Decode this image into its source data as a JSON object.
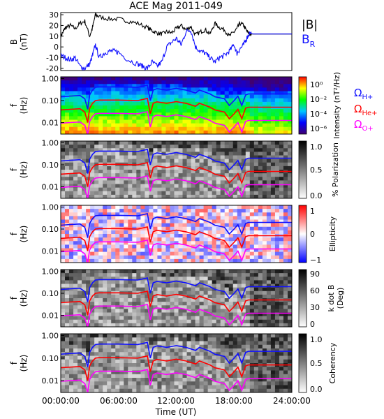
{
  "title": "ACE Mag 2011-049",
  "colors": {
    "black": "#000000",
    "proton": "#1010ff",
    "helium": "#ff0000",
    "oxygen": "#ff00ff"
  },
  "time_axis": {
    "xlabel": "Time (UT)",
    "ticks": [
      "00:00:00",
      "06:00:00",
      "12:00:00",
      "18:00:00",
      "24:00:00"
    ],
    "range_hours": [
      0,
      24
    ]
  },
  "legend_top": {
    "babs": "|B|",
    "br": "B",
    "br_sub": "R"
  },
  "gyro_legend": {
    "omega": "Ω",
    "h_sub": "H+",
    "he_sub": "He+",
    "o_sub": "O+"
  },
  "chart_data": [
    {
      "type": "line",
      "panel": "magnetic field",
      "ylabel_main": "B",
      "ylabel_unit": "(nT)",
      "ylim": [
        -22,
        32
      ],
      "yticks": [
        "30",
        "20",
        "10",
        "0",
        "-10",
        "-20"
      ],
      "ytick_values": [
        30,
        20,
        10,
        0,
        -10,
        -20
      ],
      "series": [
        {
          "name": "|B|",
          "color": "#000000",
          "x": [
            0,
            0.3,
            0.5,
            1,
            1.5,
            2,
            2.5,
            3,
            3.3,
            3.6,
            4,
            5,
            6,
            7,
            8,
            9,
            9.5,
            10,
            10.5,
            11,
            11.5,
            12,
            12.5,
            13,
            13.5,
            14,
            14.5,
            15,
            15.5,
            16,
            16.5,
            17,
            17.5,
            18,
            18.3,
            18.6,
            19,
            19.3,
            19.6,
            20,
            21,
            22,
            23,
            24
          ],
          "y": [
            10,
            15,
            18,
            20,
            17,
            22,
            24,
            10,
            18,
            30,
            28,
            26,
            26,
            24,
            22,
            18,
            15,
            13,
            12,
            14,
            13,
            17,
            20,
            16,
            19,
            11,
            14,
            16,
            12,
            22,
            18,
            16,
            10,
            14,
            17,
            22,
            20,
            15,
            12,
            12,
            12,
            12,
            12,
            12
          ]
        },
        {
          "name": "B_R",
          "color": "#1010ff",
          "x": [
            0,
            0.5,
            1,
            1.5,
            2,
            2.5,
            3,
            3.3,
            3.6,
            4,
            4.5,
            5,
            5.5,
            6,
            7,
            8,
            8.5,
            9,
            9.5,
            10,
            10.5,
            11,
            11.5,
            12,
            12.5,
            13,
            13.5,
            14,
            14.5,
            15,
            15.5,
            16,
            16.5,
            17,
            17.5,
            18,
            18.3,
            18.6,
            19,
            19.3,
            19.6,
            20,
            21,
            22,
            23,
            24
          ],
          "y": [
            -8,
            -10,
            -12,
            -10,
            -18,
            -20,
            -16,
            -8,
            2,
            -10,
            -6,
            -4,
            -4,
            -5,
            -12,
            -16,
            -18,
            -20,
            -14,
            -18,
            -14,
            0,
            4,
            8,
            2,
            14,
            16,
            0,
            -4,
            -6,
            -10,
            -14,
            -10,
            -8,
            -4,
            2,
            -6,
            -2,
            2,
            8,
            13,
            12,
            12,
            12,
            12,
            12
          ]
        }
      ]
    },
    {
      "type": "heatmap",
      "panel": "power spectrum",
      "ylabel_main": "f",
      "ylabel_unit": "(Hz)",
      "colorbar_label": "Intensity (nT²/Hz)",
      "colorbar_ticks": [
        "10⁰",
        "10⁻²",
        "10⁻⁴",
        "10⁻⁶"
      ],
      "colorbar_scale": "rainbow",
      "ylim": [
        0.003,
        1.2
      ],
      "yscale": "log"
    },
    {
      "type": "heatmap",
      "panel": "polarization",
      "ylabel_main": "f",
      "ylabel_unit": "(Hz)",
      "colorbar_label": "% Polarization",
      "colorbar_ticks": [
        "1.0",
        "0.5",
        "0.0"
      ],
      "colorbar_scale": "gray",
      "ylim": [
        0.003,
        1.2
      ],
      "yscale": "log"
    },
    {
      "type": "heatmap",
      "panel": "ellipticity",
      "ylabel_main": "f",
      "ylabel_unit": "(Hz)",
      "colorbar_label": "Ellipticity",
      "colorbar_ticks": [
        "1",
        "0",
        "−1"
      ],
      "colorbar_scale": "blue-white-red",
      "ylim": [
        0.003,
        1.2
      ],
      "yscale": "log"
    },
    {
      "type": "heatmap",
      "panel": "wave normal angle",
      "ylabel_main": "f",
      "ylabel_unit": "(Hz)",
      "colorbar_label": "k dot B",
      "colorbar_unit": "(Deg)",
      "colorbar_ticks": [
        "90",
        "60",
        "30",
        "0"
      ],
      "colorbar_scale": "gray",
      "ylim": [
        0.003,
        1.2
      ],
      "yscale": "log"
    },
    {
      "type": "heatmap",
      "panel": "coherency",
      "ylabel_main": "f",
      "ylabel_unit": "(Hz)",
      "colorbar_label": "Coherency",
      "colorbar_ticks": [
        "1.0",
        "0.5",
        "0.0"
      ],
      "colorbar_scale": "gray",
      "ylim": [
        0.003,
        1.2
      ],
      "yscale": "log"
    }
  ],
  "spectra_axis": {
    "yticks": [
      "1.00",
      "0.10",
      "0.01"
    ],
    "ytick_values": [
      1.0,
      0.1,
      0.01
    ]
  },
  "gyro_lines": {
    "x": [
      0,
      1,
      2,
      2.5,
      2.8,
      3.0,
      3.3,
      3.6,
      4,
      6,
      8,
      9,
      9.3,
      9.6,
      10,
      11,
      12,
      13,
      14,
      14.4,
      14.8,
      15.5,
      16,
      17,
      17.5,
      18,
      18.4,
      18.8,
      19.2,
      19.5,
      20,
      22,
      24
    ],
    "h_plus": [
      0.15,
      0.16,
      0.17,
      0.12,
      0.04,
      0.18,
      0.3,
      0.4,
      0.42,
      0.42,
      0.4,
      0.5,
      0.1,
      0.3,
      0.35,
      0.3,
      0.36,
      0.3,
      0.22,
      0.3,
      0.26,
      0.2,
      0.15,
      0.12,
      0.06,
      0.1,
      0.16,
      0.06,
      0.18,
      0.2,
      0.2,
      0.2,
      0.2
    ]
  }
}
